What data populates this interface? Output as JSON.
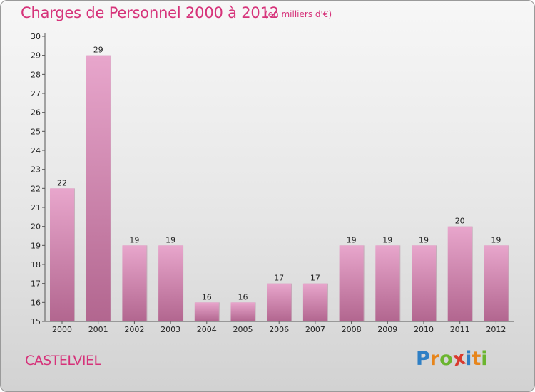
{
  "header": {
    "title": "Charges de Personnel 2000 à 2012",
    "unit": "(en milliers d'€)"
  },
  "footer": {
    "commune": "CASTELVIEL",
    "logo_letters": [
      "P",
      "r",
      "o",
      "x",
      "i",
      "t",
      "i"
    ],
    "logo_colors": [
      "#2e7fc5",
      "#e7851b",
      "#6bb52f",
      "#d93a2e",
      "#2e7fc5",
      "#e7851b",
      "#6bb52f"
    ]
  },
  "colors": {
    "accent": "#d6337a",
    "bar_top": "#e8a6cc",
    "bar_bottom": "#b2668f"
  },
  "chart_data": {
    "type": "bar",
    "categories": [
      "2000",
      "2001",
      "2002",
      "2003",
      "2004",
      "2005",
      "2006",
      "2007",
      "2008",
      "2009",
      "2010",
      "2011",
      "2012"
    ],
    "values": [
      22,
      29,
      19,
      19,
      16,
      16,
      17,
      17,
      19,
      19,
      19,
      20,
      19
    ],
    "title": "Charges de Personnel 2000 à 2012",
    "ylim": [
      15,
      30
    ],
    "yticks": [
      15,
      16,
      17,
      18,
      19,
      20,
      21,
      22,
      23,
      24,
      25,
      26,
      27,
      28,
      29,
      30
    ],
    "grid": false
  }
}
